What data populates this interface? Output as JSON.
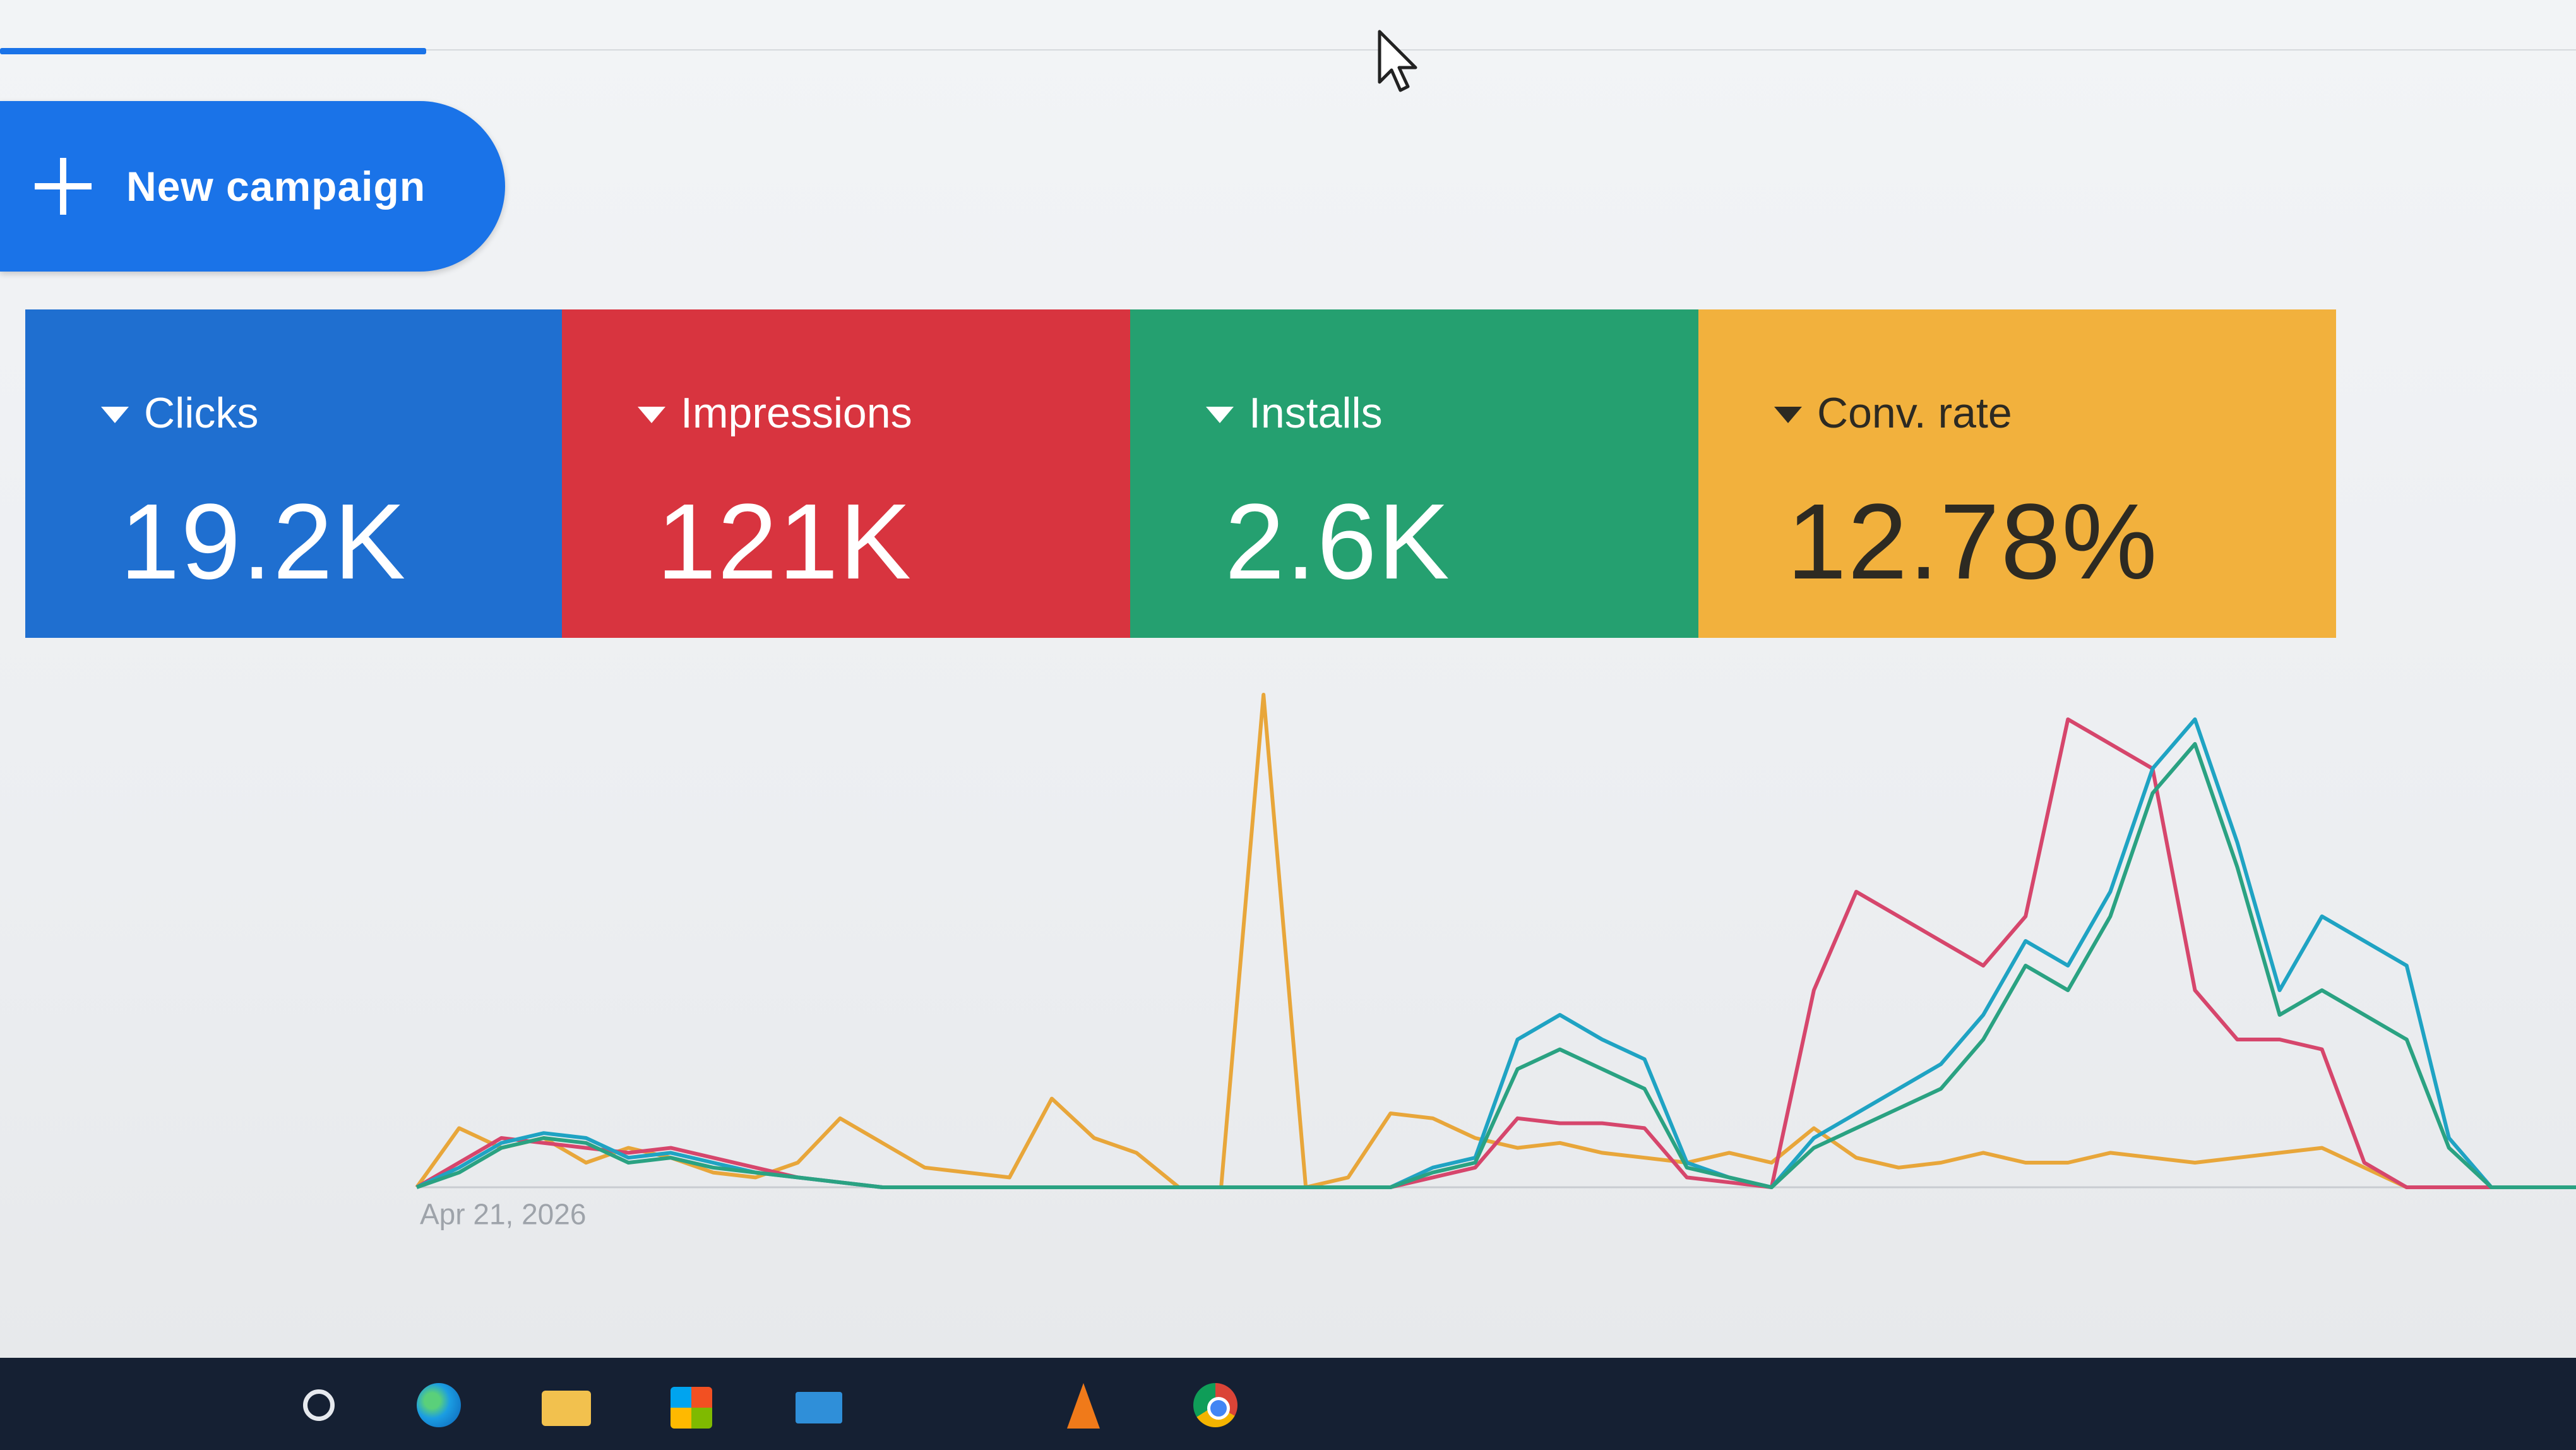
{
  "toolbar": {
    "new_campaign_label": "New campaign"
  },
  "metrics": [
    {
      "name": "Clicks",
      "value": "19.2K",
      "color": "#1f6fd0"
    },
    {
      "name": "Impressions",
      "value": "121K",
      "color": "#d8343f"
    },
    {
      "name": "Installs",
      "value": "2.6K",
      "color": "#25a070"
    },
    {
      "name": "Conv. rate",
      "value": "12.78%",
      "color": "#f2b13d"
    }
  ],
  "chart_data": {
    "type": "line",
    "x_start_label": "Apr 21, 2026",
    "ylim": [
      0,
      100
    ],
    "series": [
      {
        "color": "#e8a63a",
        "values": [
          0,
          12,
          8,
          10,
          5,
          8,
          6,
          3,
          2,
          5,
          14,
          9,
          4,
          3,
          2,
          18,
          10,
          7,
          0,
          0,
          100,
          0,
          2,
          15,
          14,
          10,
          8,
          9,
          7,
          6,
          5,
          7,
          5,
          12,
          6,
          4,
          5,
          7,
          5,
          5,
          7,
          6,
          5,
          6,
          7,
          8,
          4,
          0,
          0,
          0,
          0,
          0
        ]
      },
      {
        "color": "#d6466c",
        "values": [
          0,
          5,
          10,
          9,
          8,
          7,
          8,
          6,
          4,
          2,
          1,
          0,
          0,
          0,
          0,
          0,
          0,
          0,
          0,
          0,
          0,
          0,
          0,
          0,
          2,
          4,
          14,
          13,
          13,
          12,
          2,
          1,
          0,
          40,
          60,
          55,
          50,
          45,
          55,
          95,
          90,
          85,
          40,
          30,
          30,
          28,
          5,
          0,
          0,
          0,
          0,
          0
        ]
      },
      {
        "color": "#1fa3c3",
        "values": [
          0,
          4,
          9,
          11,
          10,
          6,
          7,
          5,
          3,
          2,
          1,
          0,
          0,
          0,
          0,
          0,
          0,
          0,
          0,
          0,
          0,
          0,
          0,
          0,
          4,
          6,
          30,
          35,
          30,
          26,
          5,
          2,
          0,
          10,
          15,
          20,
          25,
          35,
          50,
          45,
          60,
          85,
          95,
          70,
          40,
          55,
          50,
          45,
          10,
          0,
          0,
          0
        ]
      },
      {
        "color": "#2aa282",
        "values": [
          0,
          3,
          8,
          10,
          9,
          5,
          6,
          4,
          3,
          2,
          1,
          0,
          0,
          0,
          0,
          0,
          0,
          0,
          0,
          0,
          0,
          0,
          0,
          0,
          3,
          5,
          24,
          28,
          24,
          20,
          4,
          2,
          0,
          8,
          12,
          16,
          20,
          30,
          45,
          40,
          55,
          80,
          90,
          65,
          35,
          40,
          35,
          30,
          8,
          0,
          0,
          0
        ]
      }
    ]
  }
}
